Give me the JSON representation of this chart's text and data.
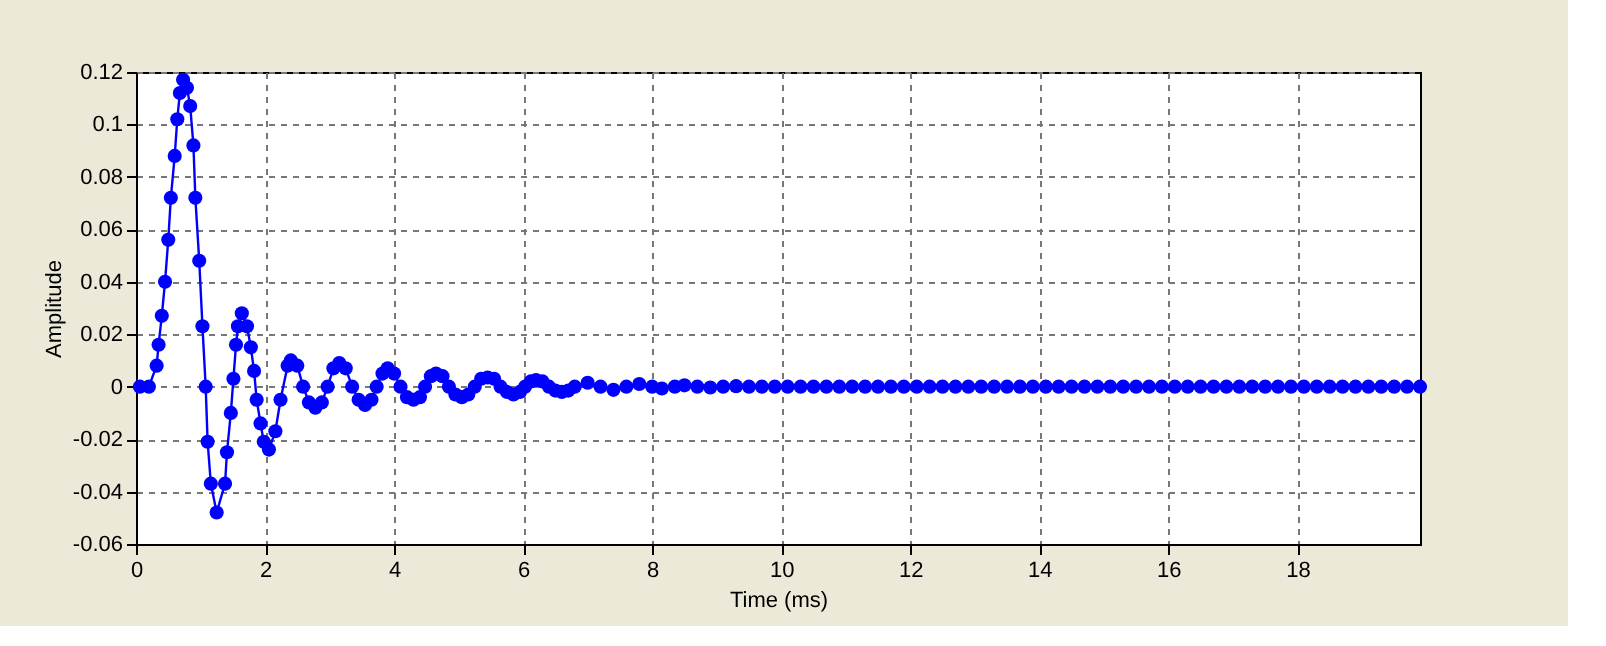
{
  "chart_data": {
    "type": "line",
    "xlabel": "Time (ms)",
    "ylabel": "Amplitude",
    "xlim": [
      0,
      19.9
    ],
    "ylim": [
      -0.06,
      0.12
    ],
    "xticks": [
      0,
      2,
      4,
      6,
      8,
      10,
      12,
      14,
      16,
      18
    ],
    "yticks": [
      -0.06,
      -0.04,
      -0.02,
      0,
      0.02,
      0.04,
      0.06,
      0.08,
      0.1,
      0.12
    ],
    "grid": true,
    "marker": "circle",
    "line_style": "solid",
    "series": [
      {
        "color": "#0000ff",
        "x": [
          0.06,
          0.2,
          0.32,
          0.35,
          0.4,
          0.45,
          0.5,
          0.54,
          0.6,
          0.64,
          0.68,
          0.73,
          0.79,
          0.84,
          0.89,
          0.92,
          0.98,
          1.03,
          1.08,
          1.11,
          1.16,
          1.25,
          1.38,
          1.41,
          1.47,
          1.51,
          1.55,
          1.58,
          1.64,
          1.72,
          1.78,
          1.83,
          1.87,
          1.93,
          1.98,
          2.06,
          2.16,
          2.24,
          2.35,
          2.4,
          2.5,
          2.59,
          2.68,
          2.78,
          2.88,
          2.97,
          3.06,
          3.15,
          3.25,
          3.35,
          3.45,
          3.55,
          3.65,
          3.73,
          3.82,
          3.9,
          4.0,
          4.1,
          4.2,
          4.3,
          4.4,
          4.48,
          4.57,
          4.65,
          4.75,
          4.85,
          4.95,
          5.05,
          5.15,
          5.25,
          5.35,
          5.45,
          5.55,
          5.65,
          5.75,
          5.85,
          5.95,
          6.03,
          6.12,
          6.2,
          6.3,
          6.4,
          6.5,
          6.6,
          6.7,
          6.8,
          7.0,
          7.2,
          7.4,
          7.6,
          7.8,
          8.0,
          8.15,
          8.35,
          8.5,
          8.7,
          8.9,
          9.1,
          9.3,
          9.5,
          9.7,
          9.9,
          10.1,
          10.3,
          10.5,
          10.7,
          10.9,
          11.1,
          11.3,
          11.5,
          11.7,
          11.9,
          12.1,
          12.3,
          12.5,
          12.7,
          12.9,
          13.1,
          13.3,
          13.5,
          13.7,
          13.9,
          14.1,
          14.3,
          14.5,
          14.7,
          14.9,
          15.1,
          15.3,
          15.5,
          15.7,
          15.9,
          16.1,
          16.3,
          16.5,
          16.7,
          16.9,
          17.1,
          17.3,
          17.5,
          17.7,
          17.9,
          18.1,
          18.3,
          18.5,
          18.7,
          18.9,
          19.1,
          19.3,
          19.5,
          19.7,
          19.9
        ],
        "values": [
          0,
          0,
          0.008,
          0.016,
          0.027,
          0.04,
          0.056,
          0.072,
          0.088,
          0.102,
          0.112,
          0.117,
          0.114,
          0.107,
          0.092,
          0.072,
          0.048,
          0.023,
          0,
          -0.021,
          -0.037,
          -0.048,
          -0.037,
          -0.025,
          -0.01,
          0.003,
          0.016,
          0.023,
          0.028,
          0.023,
          0.015,
          0.006,
          -0.005,
          -0.014,
          -0.021,
          -0.024,
          -0.017,
          -0.005,
          0.008,
          0.01,
          0.008,
          0,
          -0.006,
          -0.008,
          -0.006,
          0,
          0.007,
          0.009,
          0.007,
          0,
          -0.005,
          -0.007,
          -0.005,
          0,
          0.005,
          0.007,
          0.005,
          0,
          -0.004,
          -0.005,
          -0.004,
          0,
          0.004,
          0.005,
          0.004,
          0,
          -0.003,
          -0.004,
          -0.003,
          0,
          0.003,
          0.0035,
          0.003,
          0,
          -0.002,
          -0.003,
          -0.002,
          0,
          0.002,
          0.0025,
          0.002,
          0,
          -0.0015,
          -0.002,
          -0.0015,
          0,
          0.0015,
          0,
          -0.0012,
          0,
          0.001,
          0,
          -0.0007,
          0,
          0.0005,
          0,
          -0.0003,
          0,
          0.0002,
          0,
          0,
          0,
          0,
          0,
          0,
          0,
          0,
          0,
          0,
          0,
          0,
          0,
          0,
          0,
          0,
          0,
          0,
          0,
          0,
          0,
          0,
          0,
          0,
          0,
          0,
          0,
          0,
          0,
          0,
          0,
          0,
          0,
          0,
          0,
          0,
          0,
          0,
          0,
          0,
          0,
          0,
          0,
          0,
          0,
          0,
          0,
          0,
          0,
          0,
          0,
          0,
          0
        ]
      }
    ]
  }
}
